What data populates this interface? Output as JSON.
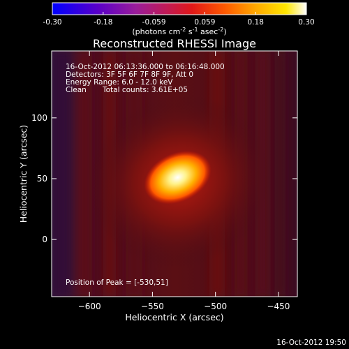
{
  "colorbar": {
    "ticks": [
      "-0.30",
      "-0.18",
      "-0.059",
      "0.059",
      "0.18",
      "0.30"
    ],
    "unit_prefix": "(photons cm",
    "unit_exp1": "-2",
    "unit_mid": " s",
    "unit_exp2": "-1",
    "unit_mid2": " asec",
    "unit_exp3": "-2",
    "unit_suffix": ")"
  },
  "image_info": {
    "time_range": "16-Oct-2012 06:13:36.000 to 06:16:48.000",
    "detectors": "Detectors: 3F 5F 6F 7F 8F 9F, Att 0",
    "energy": "Energy Range: 6.0 - 12.0 keV",
    "method": "Clean",
    "total_counts": "Total counts: 3.61E+05",
    "peak": "Position of Peak = [-530,51]"
  },
  "footer_timestamp": "16-Oct-2012 19:50",
  "colors": {
    "background": "#000000",
    "text": "#ffffff",
    "halo": "#5a0e0e",
    "background_field": "#3a0c2c"
  },
  "chart_data": {
    "type": "heatmap",
    "title": "Reconstructed RHESSI Image",
    "xlabel": "Heliocentric X (arcsec)",
    "ylabel": "Heliocentric Y (arcsec)",
    "xlim": [
      -630,
      -435
    ],
    "ylim": [
      -47,
      155
    ],
    "x_ticks": [
      {
        "value": -600,
        "label": "−600"
      },
      {
        "value": -550,
        "label": "−550"
      },
      {
        "value": -500,
        "label": "−500"
      },
      {
        "value": -450,
        "label": "−450"
      }
    ],
    "y_ticks": [
      {
        "value": 0,
        "label": "0"
      },
      {
        "value": 50,
        "label": "50"
      },
      {
        "value": 100,
        "label": "100"
      }
    ],
    "color_range": [
      -0.3,
      0.3
    ],
    "colormap": "rainbow-hot (blue-purple-red-orange-yellow-white)",
    "peak": {
      "x": -530,
      "y": 51,
      "value": 0.3
    },
    "source_extent_arcsec": {
      "rx": 14,
      "ry": 10,
      "angle_deg": -25
    }
  }
}
